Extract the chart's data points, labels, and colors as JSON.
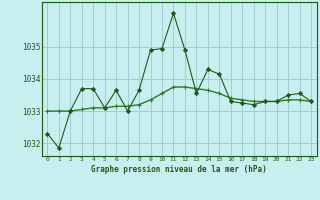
{
  "title": "Graphe pression niveau de la mer (hPa)",
  "bg_color": "#c8eef0",
  "grid_color": "#9ecfcf",
  "line_color_main": "#1a5c1a",
  "line_color_smooth": "#2d7a2d",
  "xlim": [
    -0.5,
    23.5
  ],
  "ylim": [
    1031.6,
    1036.4
  ],
  "yticks": [
    1032,
    1033,
    1034,
    1035
  ],
  "xtick_labels": [
    "0",
    "1",
    "2",
    "3",
    "4",
    "5",
    "6",
    "7",
    "8",
    "9",
    "10",
    "11",
    "12",
    "13",
    "14",
    "15",
    "16",
    "17",
    "18",
    "19",
    "20",
    "21",
    "22",
    "23"
  ],
  "x": [
    0,
    1,
    2,
    3,
    4,
    5,
    6,
    7,
    8,
    9,
    10,
    11,
    12,
    13,
    14,
    15,
    16,
    17,
    18,
    19,
    20,
    21,
    22,
    23
  ],
  "y_raw": [
    1032.3,
    1031.85,
    1033.0,
    1033.7,
    1033.7,
    1033.1,
    1033.65,
    1033.0,
    1033.65,
    1034.9,
    1034.95,
    1036.05,
    1034.9,
    1033.55,
    1034.3,
    1034.15,
    1033.3,
    1033.25,
    1033.2,
    1033.3,
    1033.3,
    1033.5,
    1033.55,
    1033.3
  ],
  "y_smooth": [
    1033.0,
    1033.0,
    1033.0,
    1033.05,
    1033.1,
    1033.1,
    1033.15,
    1033.15,
    1033.2,
    1033.35,
    1033.55,
    1033.75,
    1033.75,
    1033.7,
    1033.65,
    1033.55,
    1033.4,
    1033.35,
    1033.3,
    1033.3,
    1033.3,
    1033.35,
    1033.35,
    1033.3
  ]
}
